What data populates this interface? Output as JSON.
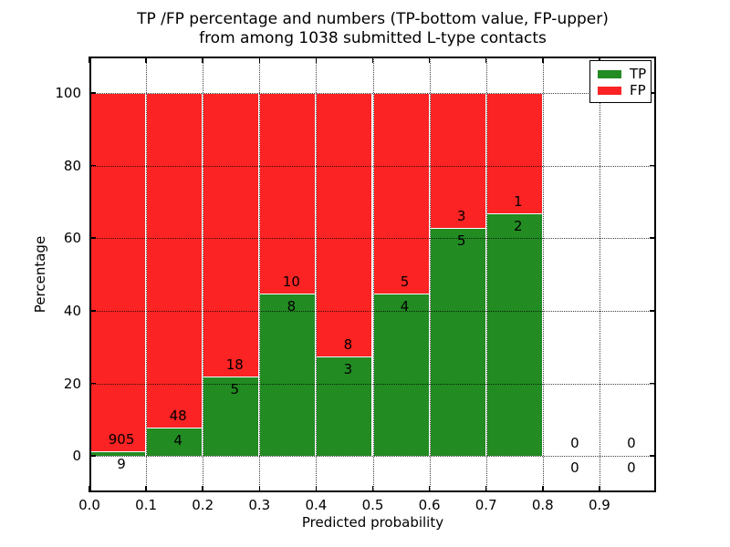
{
  "figure": {
    "title_line1": "TP /FP percentage and numbers (TP-bottom value, FP-upper)",
    "title_line2": "from among 1038 submitted L-type contacts",
    "xlabel": "Predicted probability",
    "ylabel": "Percentage"
  },
  "legend": {
    "items": [
      {
        "label": "TP",
        "color": "#228b22"
      },
      {
        "label": "FP",
        "color": "#fb2323"
      }
    ]
  },
  "colors": {
    "tp": "#228b22",
    "fp": "#fb2323",
    "grid": "#000000",
    "background": "#ffffff"
  },
  "chart_data": {
    "type": "bar",
    "stacked": true,
    "normalized_to_percent": true,
    "title": "TP /FP percentage and numbers (TP-bottom value, FP-upper) from among 1038 submitted L-type contacts",
    "xlabel": "Predicted probability",
    "ylabel": "Percentage",
    "xlim": [
      0.0,
      1.0
    ],
    "ylim": [
      -10,
      110
    ],
    "x_ticks": [
      "0.0",
      "0.1",
      "0.2",
      "0.3",
      "0.4",
      "0.5",
      "0.6",
      "0.7",
      "0.8",
      "0.9"
    ],
    "y_ticks": [
      "0",
      "20",
      "40",
      "60",
      "80",
      "100"
    ],
    "bin_width": 0.1,
    "categories": [
      "0.0-0.1",
      "0.1-0.2",
      "0.2-0.3",
      "0.3-0.4",
      "0.4-0.5",
      "0.5-0.6",
      "0.6-0.7",
      "0.7-0.8",
      "0.8-0.9",
      "0.9-1.0"
    ],
    "series": [
      {
        "name": "TP",
        "color": "#228b22",
        "values": [
          9,
          4,
          5,
          8,
          3,
          4,
          5,
          2,
          0,
          0
        ]
      },
      {
        "name": "FP",
        "color": "#fb2323",
        "values": [
          905,
          48,
          18,
          10,
          8,
          5,
          3,
          1,
          0,
          0
        ]
      }
    ],
    "tp_percent": [
      0.98,
      7.69,
      21.74,
      44.44,
      27.27,
      44.44,
      62.5,
      66.67,
      null,
      null
    ],
    "total_contacts": 1038,
    "grid": "dotted",
    "legend_position": "upper right"
  }
}
